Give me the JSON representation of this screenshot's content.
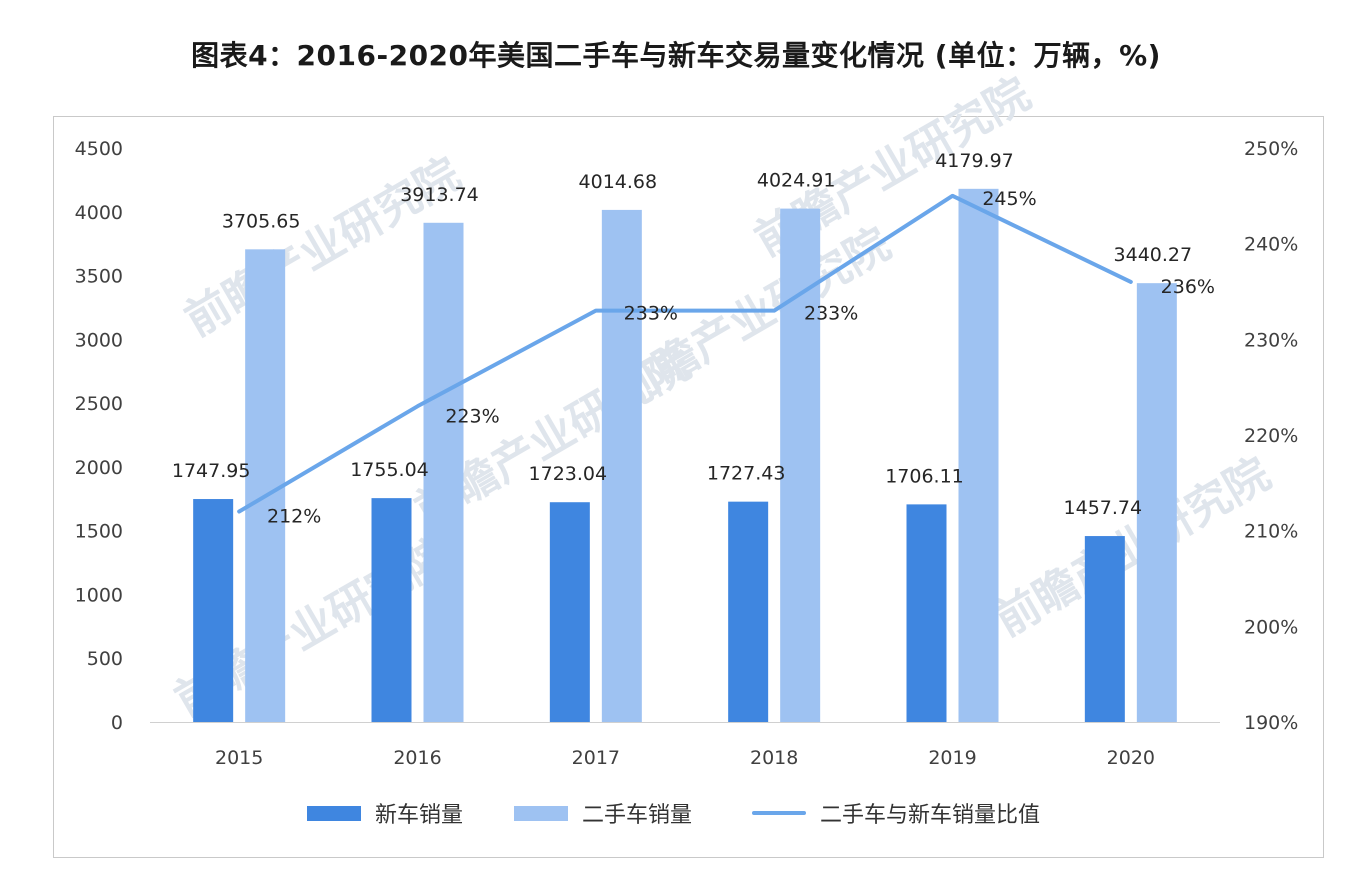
{
  "title": "图表4：2016-2020年美国二手车与新车交易量变化情况 (单位：万辆，%)",
  "watermark": "前瞻产业研究院",
  "colors": {
    "new_bar": "#3f86e0",
    "used_bar": "#9ec2f2",
    "ratio_line": "#6aa6ea",
    "frame": "#c9c9c9",
    "watermark": "#dfe5ec"
  },
  "chart_data": {
    "type": "bar",
    "title": "图表4：2016-2020年美国二手车与新车交易量变化情况 (单位：万辆，%)",
    "categories": [
      "2015",
      "2016",
      "2017",
      "2018",
      "2019",
      "2020"
    ],
    "series": [
      {
        "name": "新车销量",
        "type": "bar",
        "axis": "left",
        "values": [
          1747.95,
          1755.04,
          1723.04,
          1727.43,
          1706.11,
          1457.74
        ],
        "labels": [
          "1747.95",
          "1755.04",
          "1723.04",
          "1727.43",
          "1706.11",
          "1457.74"
        ]
      },
      {
        "name": "二手车销量",
        "type": "bar",
        "axis": "left",
        "values": [
          3705.65,
          3913.74,
          4014.68,
          4024.91,
          4179.97,
          3440.27
        ],
        "labels": [
          "3705.65",
          "3913.74",
          "4014.68",
          "4024.91",
          "4179.97",
          "3440.27"
        ]
      },
      {
        "name": "二手车与新车销量比值",
        "type": "line",
        "axis": "right",
        "values": [
          212,
          223,
          233,
          233,
          245,
          236
        ],
        "labels": [
          "212%",
          "223%",
          "233%",
          "233%",
          "245%",
          "236%"
        ]
      }
    ],
    "y_left": {
      "ylim": [
        0,
        4500
      ],
      "ticks": [
        "0",
        "500",
        "1000",
        "1500",
        "2000",
        "2500",
        "3000",
        "3500",
        "4000",
        "4500"
      ]
    },
    "y_right": {
      "ylim": [
        190,
        250
      ],
      "ticks": [
        "190%",
        "200%",
        "210%",
        "220%",
        "230%",
        "240%",
        "250%"
      ]
    },
    "legend_position": "bottom",
    "grid": false
  }
}
